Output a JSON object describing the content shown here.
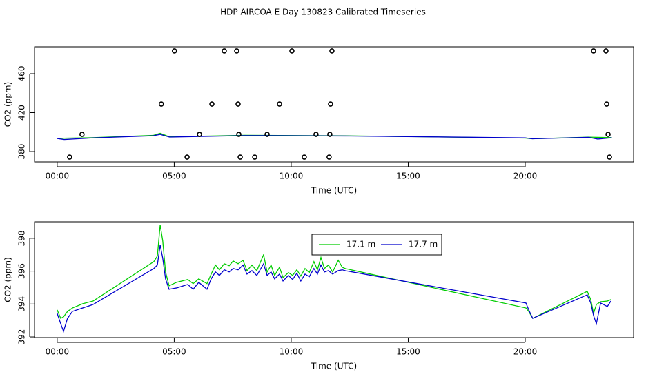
{
  "title": "HDP AIRCOA E  Day 130823  Calibrated Timeseries",
  "chart_data": [
    {
      "type": "line",
      "xlabel": "Time (UTC)",
      "ylabel": "CO2 (ppm)",
      "xlim": [
        -0.97,
        24.63
      ],
      "ylim": [
        369.4,
        487.6
      ],
      "xticks": [
        {
          "value": 0,
          "label": "00:00"
        },
        {
          "value": 5,
          "label": "05:00"
        },
        {
          "value": 10,
          "label": "10:00"
        },
        {
          "value": 15,
          "label": "15:00"
        },
        {
          "value": 20,
          "label": "20:00"
        }
      ],
      "yticks": [
        380,
        420,
        460
      ],
      "series": [
        {
          "color": "#00cc00",
          "x": [
            0,
            1.5,
            4.1,
            4.4,
            4.8,
            8,
            12.3,
            20,
            20.3,
            22.7,
            23.7
          ],
          "values": [
            393.6,
            394.2,
            396.6,
            398.8,
            395.1,
            396.7,
            396.2,
            393.8,
            393.1,
            394.8,
            394.3
          ]
        },
        {
          "color": "#0000cc",
          "x": [
            0,
            0.3,
            1.5,
            4.1,
            4.4,
            4.8,
            8,
            12.3,
            20,
            20.3,
            22.7,
            23.1,
            23.7
          ],
          "values": [
            393.4,
            392.3,
            394.0,
            396.2,
            397.6,
            394.9,
            396.4,
            396.0,
            394.1,
            393.1,
            394.6,
            392.8,
            394.2
          ]
        },
        {
          "marker": "circle",
          "color": "#000000",
          "x": [
            0.53,
            5.55,
            7.82,
            8.44,
            10.56,
            11.62,
            23.6,
            1.06,
            6.08,
            7.76,
            8.97,
            11.06,
            11.65,
            23.54,
            4.45,
            6.61,
            7.73,
            9.5,
            11.68,
            23.48,
            5.01,
            7.14,
            7.67,
            10.03,
            11.74,
            22.92,
            23.45
          ],
          "values": [
            374.3,
            374.3,
            374.3,
            374.3,
            374.3,
            374.3,
            374.3,
            397.7,
            397.7,
            397.7,
            397.7,
            397.7,
            397.7,
            397.7,
            428.8,
            428.8,
            428.8,
            428.8,
            428.8,
            428.8,
            483.4,
            483.4,
            483.4,
            483.4,
            483.4,
            483.4,
            483.4
          ]
        }
      ]
    },
    {
      "type": "line",
      "xlabel": "Time (UTC)",
      "ylabel": "CO2 (ppm)",
      "xlim": [
        -0.97,
        24.63
      ],
      "ylim": [
        391.96,
        399.0
      ],
      "xticks": [
        {
          "value": 0,
          "label": "00:00"
        },
        {
          "value": 5,
          "label": "05:00"
        },
        {
          "value": 10,
          "label": "10:00"
        },
        {
          "value": 15,
          "label": "15:00"
        },
        {
          "value": 20,
          "label": "20:00"
        }
      ],
      "yticks": [
        392,
        394,
        396,
        398
      ],
      "legend": "top",
      "series": [
        {
          "name": "17.1 m",
          "color": "#00cc00",
          "x": [
            0,
            0.15,
            0.27,
            0.44,
            0.65,
            1.09,
            1.53,
            4.13,
            4.28,
            4.4,
            4.51,
            4.63,
            4.78,
            5.1,
            5.58,
            5.81,
            6.05,
            6.4,
            6.58,
            6.76,
            6.93,
            7.14,
            7.35,
            7.52,
            7.73,
            7.94,
            8.11,
            8.32,
            8.53,
            8.82,
            8.97,
            9.14,
            9.29,
            9.5,
            9.65,
            9.88,
            10.06,
            10.24,
            10.41,
            10.59,
            10.77,
            10.97,
            11.12,
            11.27,
            11.42,
            11.59,
            11.77,
            12.01,
            12.18,
            12.3,
            20.03,
            20.15,
            20.32,
            22.65,
            22.8,
            22.92,
            23.04,
            23.22,
            23.51,
            23.66
          ],
          "values": [
            393.64,
            393.13,
            393.22,
            393.55,
            393.76,
            394.02,
            394.18,
            396.58,
            396.92,
            398.81,
            397.84,
            395.95,
            395.11,
            395.32,
            395.49,
            395.24,
            395.53,
            395.24,
            395.82,
            396.37,
            396.08,
            396.45,
            396.33,
            396.62,
            396.45,
            396.66,
            396.03,
            396.37,
            396.03,
            397.0,
            395.95,
            396.37,
            395.74,
            396.24,
            395.61,
            395.91,
            395.74,
            396.08,
            395.7,
            396.16,
            395.91,
            396.58,
            396.08,
            396.83,
            396.16,
            396.37,
            395.95,
            396.66,
            396.24,
            396.16,
            393.76,
            393.55,
            393.13,
            394.77,
            394.27,
            393.43,
            393.97,
            394.14,
            394.18,
            394.27
          ]
        },
        {
          "name": "17.7 m",
          "color": "#0000cc",
          "x": [
            0,
            0.15,
            0.27,
            0.44,
            0.65,
            1.09,
            1.53,
            4.13,
            4.28,
            4.4,
            4.51,
            4.63,
            4.78,
            5.1,
            5.58,
            5.81,
            6.05,
            6.4,
            6.58,
            6.76,
            6.93,
            7.14,
            7.35,
            7.52,
            7.73,
            7.94,
            8.11,
            8.32,
            8.53,
            8.82,
            8.97,
            9.14,
            9.29,
            9.5,
            9.65,
            9.88,
            10.06,
            10.24,
            10.41,
            10.59,
            10.77,
            10.97,
            11.12,
            11.27,
            11.42,
            11.59,
            11.77,
            12.01,
            12.18,
            12.3,
            20.03,
            20.15,
            20.32,
            22.65,
            22.8,
            22.92,
            23.04,
            23.22,
            23.51,
            23.66
          ],
          "values": [
            393.43,
            392.8,
            392.34,
            393.13,
            393.55,
            393.76,
            393.97,
            396.16,
            396.37,
            397.59,
            396.79,
            395.53,
            394.9,
            394.98,
            395.19,
            394.9,
            395.32,
            394.9,
            395.53,
            395.95,
            395.74,
            396.08,
            395.95,
            396.16,
            396.08,
            396.37,
            395.82,
            396.03,
            395.74,
            396.45,
            395.74,
            395.95,
            395.53,
            395.82,
            395.4,
            395.74,
            395.49,
            395.87,
            395.4,
            395.82,
            395.66,
            396.16,
            395.82,
            396.37,
            395.95,
            396.03,
            395.82,
            396.03,
            396.08,
            396.03,
            394.06,
            393.64,
            393.13,
            394.56,
            394.06,
            393.3,
            392.8,
            394.06,
            393.85,
            394.18
          ]
        }
      ]
    }
  ]
}
